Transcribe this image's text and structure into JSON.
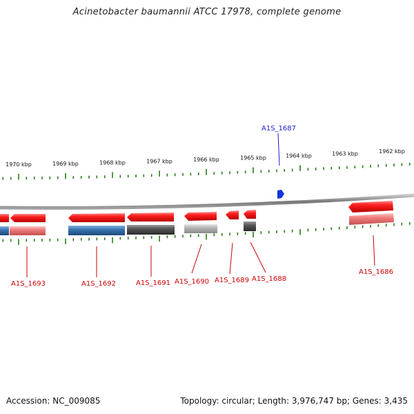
{
  "title": "Acinetobacter baumannii ATCC 17978, complete genome",
  "footer": {
    "accession": "Accession: NC_009085",
    "summary": "Topology: circular; Length: 3,976,747 bp; Genes: 3,435"
  },
  "colors": {
    "gene_red": "#ee1111",
    "backbone": "#888888",
    "tick_green": "#2a7a1a",
    "label_red": "#cc0000",
    "label_blue": "#1a1acc",
    "marker_blue": "#1133dd",
    "track_blue": "#3a75b0",
    "track_dark": "#555555",
    "track_light": "#b5b5b5",
    "track_pink": "#ee7b7b"
  },
  "scale_ticks": [
    "1970 kbp",
    "1969 kbp",
    "1968 kbp",
    "1967 kbp",
    "1966 kbp",
    "1965 kbp",
    "1964 kbp",
    "1963 kbp",
    "1962 kbp"
  ],
  "gene_labels": {
    "g1687": "A1S_1687",
    "g1693": "A1S_1693",
    "g1692": "A1S_1692",
    "g1691": "A1S_1691",
    "g1690": "A1S_1690",
    "g1689": "A1S_1689",
    "g1688": "A1S_1688",
    "g1686": "A1S_1686"
  }
}
